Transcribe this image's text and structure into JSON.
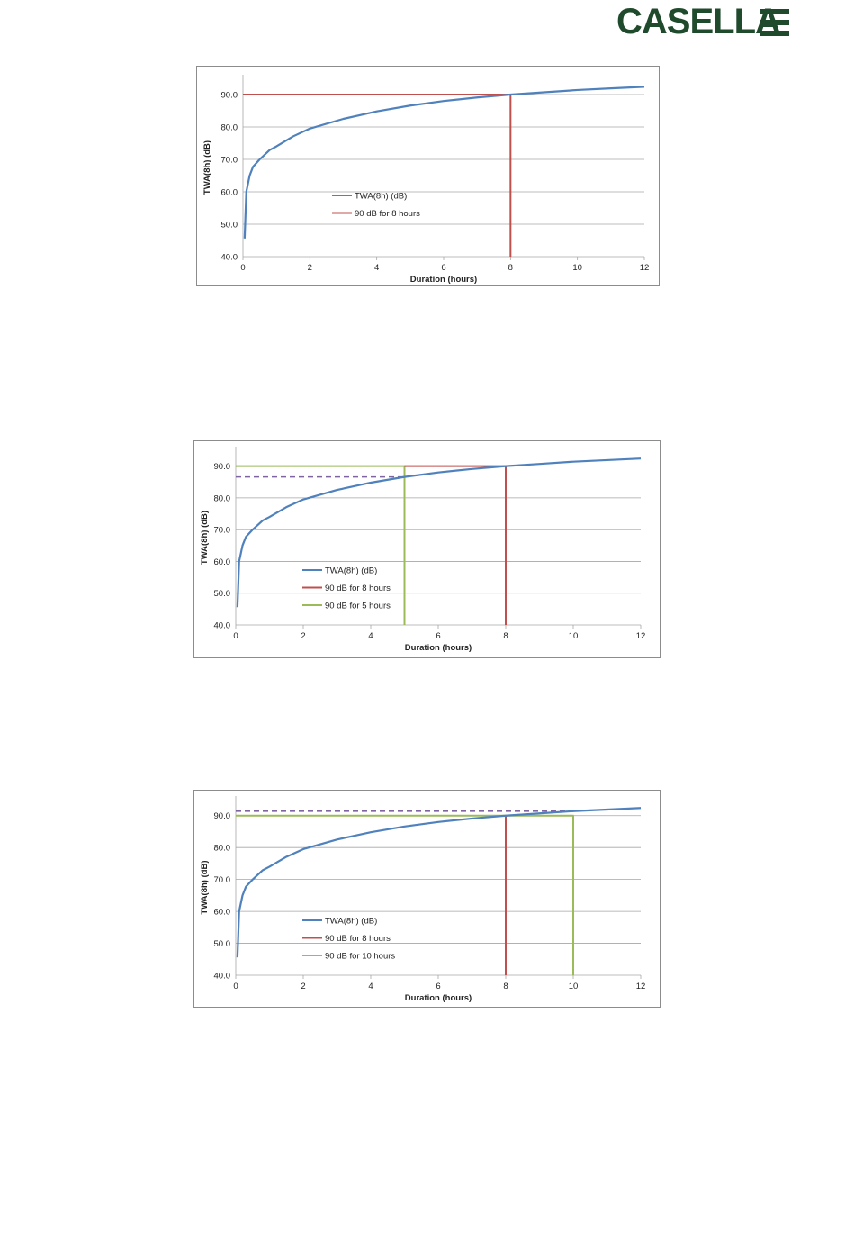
{
  "logo": {
    "text": "CASELLA",
    "color": "#1f4a2c"
  },
  "chart_data": [
    {
      "type": "line",
      "xlabel": "Duration (hours)",
      "ylabel": "TWA(8h) (dB)",
      "xlim": [
        0,
        12
      ],
      "ylim": [
        40,
        95
      ],
      "xticks": [
        "0",
        "2",
        "4",
        "6",
        "8",
        "10",
        "12"
      ],
      "yticks": [
        "40.0",
        "50.0",
        "60.0",
        "70.0",
        "80.0",
        "90.0"
      ],
      "grid": "horizontal",
      "legend_position": "center-left",
      "series": [
        {
          "name": "TWA(8h) (dB)",
          "color": "#4f81bd",
          "x": [
            0.05,
            0.1,
            0.2,
            0.3,
            0.5,
            0.8,
            1,
            1.5,
            2,
            3,
            4,
            5,
            6,
            7,
            8,
            9,
            10,
            11,
            12
          ],
          "y": [
            45.6,
            60.0,
            65.0,
            67.7,
            70.0,
            72.9,
            74.0,
            77.1,
            79.5,
            82.5,
            84.8,
            86.6,
            88.0,
            89.1,
            90.0,
            90.7,
            91.4,
            91.9,
            92.4
          ]
        },
        {
          "name": "90 dB for 8 hours",
          "color": "#c0504d",
          "x": [
            0,
            8,
            8
          ],
          "y": [
            90,
            90,
            40
          ]
        }
      ],
      "legend": [
        "TWA(8h) (dB)",
        "90 dB for 8 hours"
      ]
    },
    {
      "type": "line",
      "xlabel": "Duration (hours)",
      "ylabel": "TWA(8h) (dB)",
      "xlim": [
        0,
        12
      ],
      "ylim": [
        40,
        95
      ],
      "xticks": [
        "0",
        "2",
        "4",
        "6",
        "8",
        "10",
        "12"
      ],
      "yticks": [
        "40.0",
        "50.0",
        "60.0",
        "70.0",
        "80.0",
        "90.0"
      ],
      "grid": "horizontal",
      "legend_position": "center-left",
      "series": [
        {
          "name": "TWA(8h) (dB)",
          "color": "#4f81bd",
          "x": [
            0.05,
            0.1,
            0.2,
            0.3,
            0.5,
            0.8,
            1,
            1.5,
            2,
            3,
            4,
            5,
            6,
            7,
            8,
            9,
            10,
            11,
            12
          ],
          "y": [
            45.6,
            60.0,
            65.0,
            67.7,
            70.0,
            72.9,
            74.0,
            77.1,
            79.5,
            82.5,
            84.8,
            86.6,
            88.0,
            89.1,
            90.0,
            90.7,
            91.4,
            91.9,
            92.4
          ]
        },
        {
          "name": "90 dB for 8 hours",
          "color": "#c0504d",
          "x": [
            5,
            8,
            8
          ],
          "y": [
            90,
            90,
            40
          ]
        },
        {
          "name": "90 dB for 5 hours",
          "color": "#9bbb59",
          "x": [
            0,
            5,
            5
          ],
          "y": [
            90,
            90,
            40
          ]
        }
      ],
      "reference_line": {
        "color": "#8064a2",
        "dashed": true,
        "x": [
          0,
          5
        ],
        "y": [
          86.6,
          86.6
        ]
      },
      "legend": [
        "TWA(8h) (dB)",
        "90 dB for 8 hours",
        "90 dB for 5 hours"
      ]
    },
    {
      "type": "line",
      "xlabel": "Duration (hours)",
      "ylabel": "TWA(8h) (dB)",
      "xlim": [
        0,
        12
      ],
      "ylim": [
        40,
        95
      ],
      "xticks": [
        "0",
        "2",
        "4",
        "6",
        "8",
        "10",
        "12"
      ],
      "yticks": [
        "40.0",
        "50.0",
        "60.0",
        "70.0",
        "80.0",
        "90.0"
      ],
      "grid": "horizontal",
      "legend_position": "center-left",
      "series": [
        {
          "name": "TWA(8h) (dB)",
          "color": "#4f81bd",
          "x": [
            0.05,
            0.1,
            0.2,
            0.3,
            0.5,
            0.8,
            1,
            1.5,
            2,
            3,
            4,
            5,
            6,
            7,
            8,
            9,
            10,
            11,
            12
          ],
          "y": [
            45.6,
            60.0,
            65.0,
            67.7,
            70.0,
            72.9,
            74.0,
            77.1,
            79.5,
            82.5,
            84.8,
            86.6,
            88.0,
            89.1,
            90.0,
            90.7,
            91.4,
            91.9,
            92.4
          ]
        },
        {
          "name": "90 dB for 8 hours",
          "color": "#c0504d",
          "x": [
            8,
            8
          ],
          "y": [
            90,
            40
          ]
        },
        {
          "name": "90 dB for 10 hours",
          "color": "#9bbb59",
          "x": [
            0,
            10,
            10
          ],
          "y": [
            90,
            90,
            40
          ]
        }
      ],
      "reference_line": {
        "color": "#8064a2",
        "dashed": true,
        "x": [
          0,
          10
        ],
        "y": [
          91.4,
          91.4
        ]
      },
      "legend": [
        "TWA(8h) (dB)",
        "90 dB for 8 hours",
        "90 dB for 10 hours"
      ]
    }
  ]
}
